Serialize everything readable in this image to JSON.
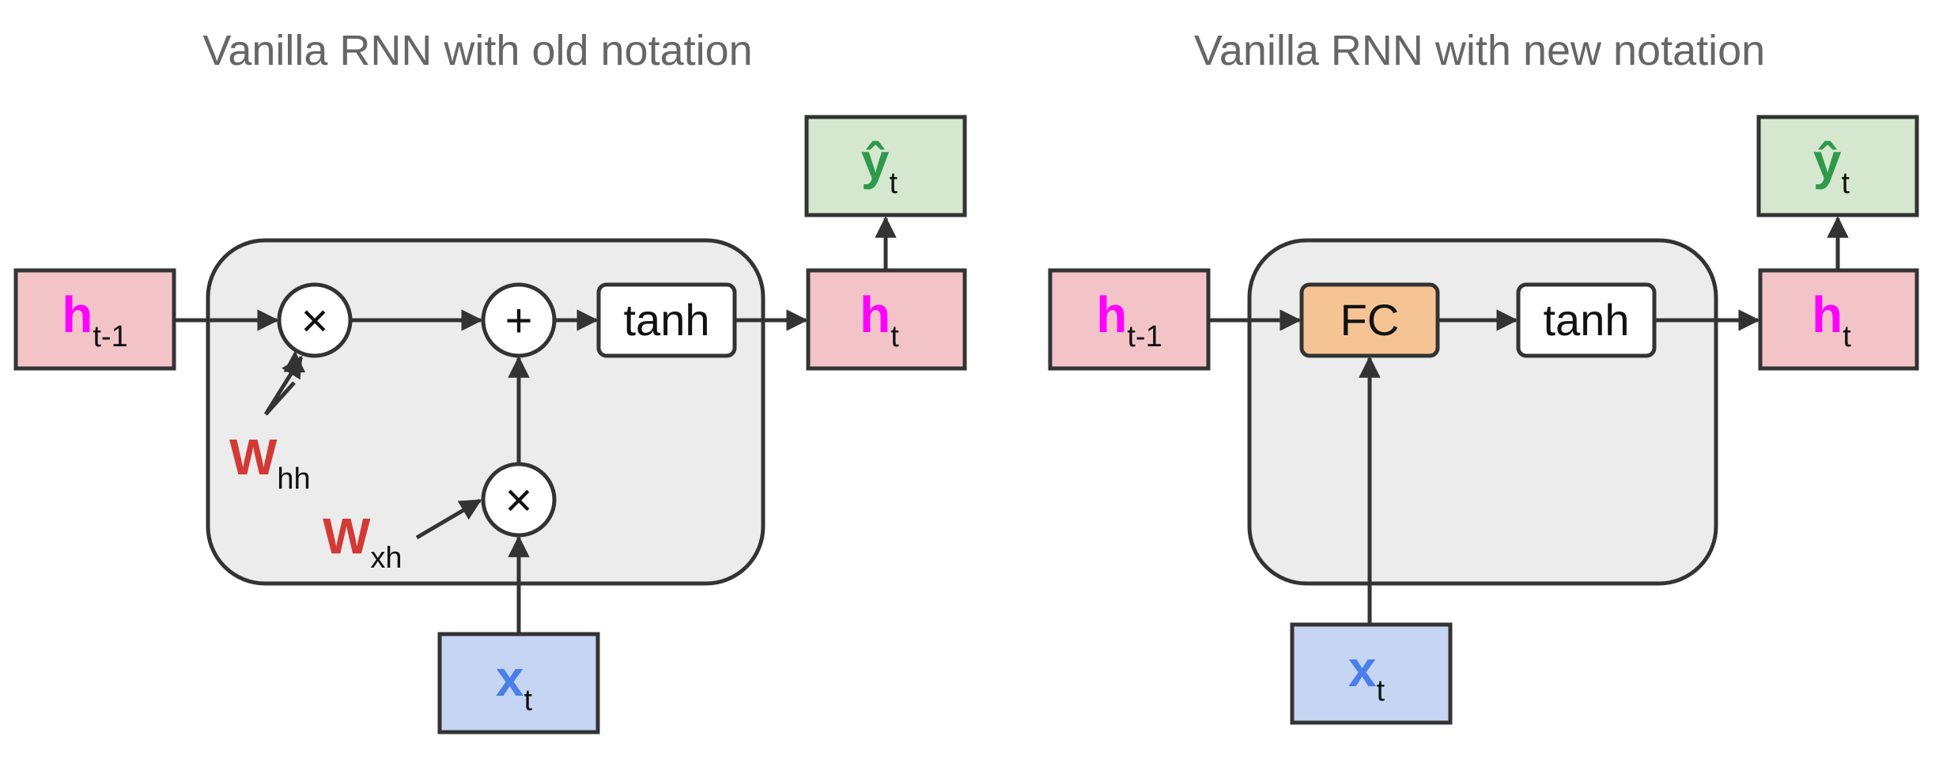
{
  "left": {
    "title": "Vanilla RNN with old notation",
    "h_prev": {
      "main": "h",
      "sub": "t-1"
    },
    "h_out": {
      "main": "h",
      "sub": "t"
    },
    "y_out": {
      "main": "ŷ",
      "sub": "t"
    },
    "x_in": {
      "main": "x",
      "sub": "t"
    },
    "w_hh": {
      "main": "W",
      "sub": "hh"
    },
    "w_xh": {
      "main": "W",
      "sub": "xh"
    },
    "mult_symbol": "×",
    "add_symbol": "+",
    "tanh_label": "tanh"
  },
  "right": {
    "title": "Vanilla RNN with new notation",
    "h_prev": {
      "main": "h",
      "sub": "t-1"
    },
    "h_out": {
      "main": "h",
      "sub": "t"
    },
    "y_out": {
      "main": "ŷ",
      "sub": "t"
    },
    "x_in": {
      "main": "x",
      "sub": "t"
    },
    "fc_label": "FC",
    "tanh_label": "tanh"
  },
  "colors": {
    "hidden_box": "#f2c4c8",
    "output_box": "#d5e8cf",
    "input_box": "#c5d5f3",
    "cell_bg": "#ececec",
    "fc_box": "#f6c494",
    "h_text": "#ff00ff",
    "x_text": "#4a7ee8",
    "y_text": "#2e9a4c",
    "w_text": "#d33a36",
    "stroke": "#333333"
  }
}
